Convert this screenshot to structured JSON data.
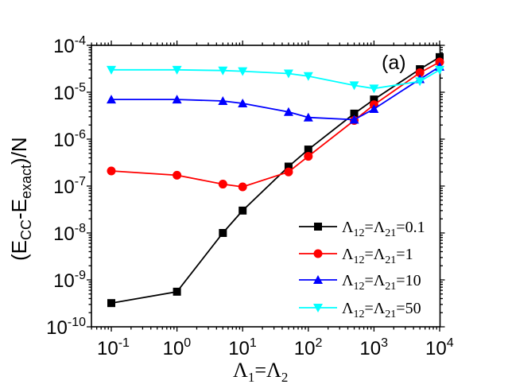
{
  "panel_label": "(a)",
  "axes": {
    "x_title": {
      "base": "Λ",
      "sub1": "1",
      "eq": "=",
      "sub2": "2"
    },
    "y_title": {
      "open": "(E",
      "sub_cc": "CC",
      "dash": "-E",
      "sub_exact": "exact",
      "close": ")/N"
    },
    "x_ticks": [
      {
        "base": "10",
        "exp": "-1",
        "value": 0.1
      },
      {
        "base": "10",
        "exp": "0",
        "value": 1
      },
      {
        "base": "10",
        "exp": "1",
        "value": 10
      },
      {
        "base": "10",
        "exp": "2",
        "value": 100
      },
      {
        "base": "10",
        "exp": "3",
        "value": 1000
      },
      {
        "base": "10",
        "exp": "4",
        "value": 10000
      }
    ],
    "y_ticks": [
      {
        "base": "10",
        "exp": "-4",
        "value": 0.0001
      },
      {
        "base": "10",
        "exp": "-5",
        "value": 1e-05
      },
      {
        "base": "10",
        "exp": "-6",
        "value": 1e-06
      },
      {
        "base": "10",
        "exp": "-7",
        "value": 1e-07
      },
      {
        "base": "10",
        "exp": "-8",
        "value": 1e-08
      },
      {
        "base": "10",
        "exp": "-9",
        "value": 1e-09
      },
      {
        "base": "10",
        "exp": "-10",
        "value": 1e-10
      }
    ]
  },
  "legend": [
    {
      "prefix": "Λ",
      "sub1": "12",
      "mid": "=Λ",
      "sub2": "21",
      "suffix": "=0.1",
      "color": "#000000",
      "marker": "square"
    },
    {
      "prefix": "Λ",
      "sub1": "12",
      "mid": "=Λ",
      "sub2": "21",
      "suffix": "=1",
      "color": "#ff0000",
      "marker": "circle"
    },
    {
      "prefix": "Λ",
      "sub1": "12",
      "mid": "=Λ",
      "sub2": "21",
      "suffix": "=10",
      "color": "#0000ff",
      "marker": "triangle-up"
    },
    {
      "prefix": "Λ",
      "sub1": "12",
      "mid": "=Λ",
      "sub2": "21",
      "suffix": "=50",
      "color": "#00ffff",
      "marker": "triangle-down"
    }
  ],
  "chart_data": {
    "type": "line",
    "title": "",
    "panel_label": "(a)",
    "xlabel": "Λ1=Λ2",
    "ylabel": "(E_CC-E_exact)/N",
    "xscale": "log",
    "yscale": "log",
    "xlim": [
      0.05,
      10000
    ],
    "ylim": [
      1e-10,
      0.0001
    ],
    "grid": false,
    "legend_position": "lower right",
    "x": [
      0.1,
      1,
      5,
      10,
      50,
      100,
      500,
      1000,
      5000,
      10000
    ],
    "series": [
      {
        "name": "Λ12=Λ21=0.1",
        "color": "#000000",
        "marker": "square",
        "values": [
          3.2e-10,
          5.6e-10,
          1e-08,
          3e-08,
          2.6e-07,
          6e-07,
          3.5e-06,
          7e-06,
          3.1e-05,
          5.6e-05
        ]
      },
      {
        "name": "Λ12=Λ21=1",
        "color": "#ff0000",
        "marker": "circle",
        "values": [
          2.1e-07,
          1.7e-07,
          1.1e-07,
          9.6e-08,
          2e-07,
          4.3e-07,
          2.5e-06,
          5.4e-06,
          2.6e-05,
          4.4e-05
        ]
      },
      {
        "name": "Λ12=Λ21=10",
        "color": "#0000ff",
        "marker": "triangle-up",
        "values": [
          7e-06,
          7e-06,
          6.5e-06,
          5.8e-06,
          3.8e-06,
          2.9e-06,
          2.6e-06,
          4.4e-06,
          1.9e-05,
          3.5e-05
        ]
      },
      {
        "name": "Λ12=Λ21=50",
        "color": "#00ffff",
        "marker": "triangle-down",
        "values": [
          3e-05,
          3e-05,
          2.9e-05,
          2.8e-05,
          2.5e-05,
          2.2e-05,
          1.4e-05,
          1.2e-05,
          1.7e-05,
          3e-05
        ]
      }
    ]
  }
}
